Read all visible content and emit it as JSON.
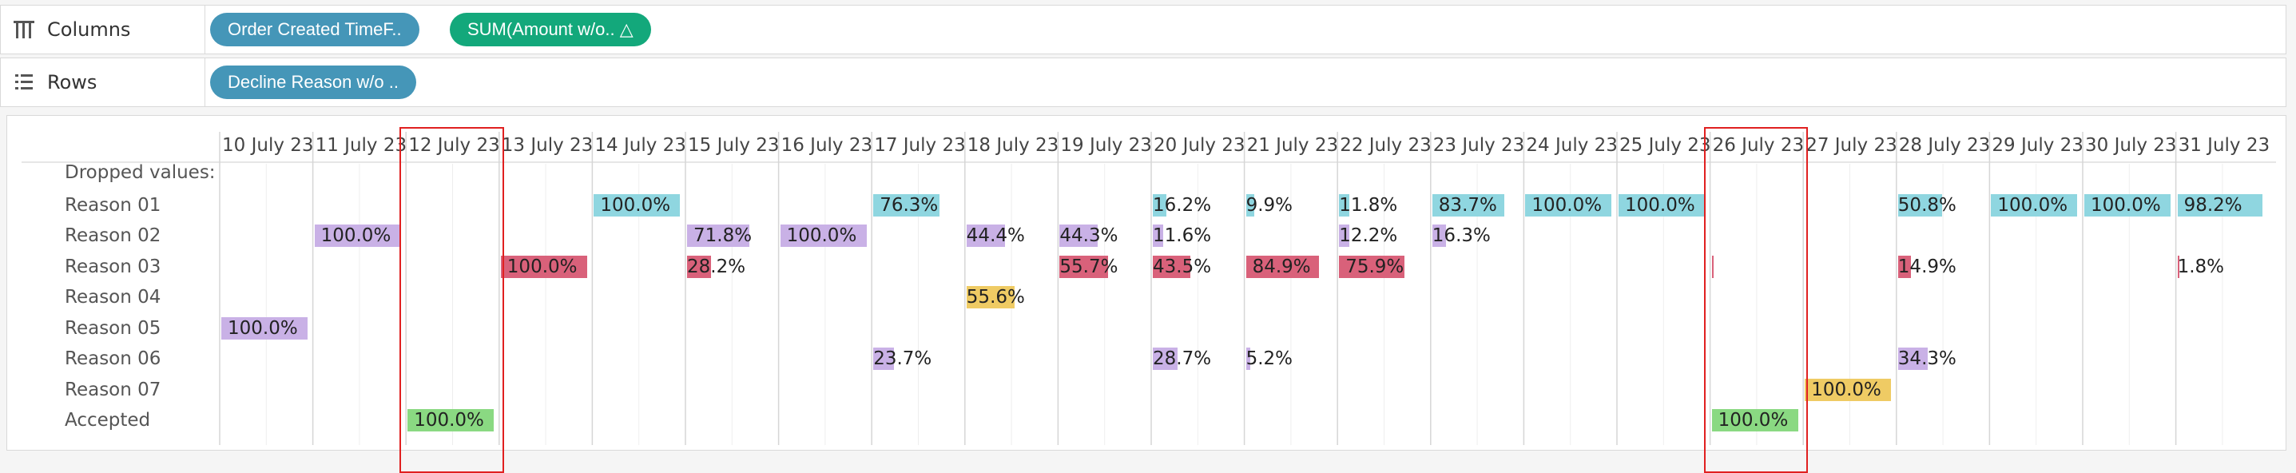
{
  "shelves": {
    "columns": {
      "label": "Columns",
      "icon": "columns-shelf-icon",
      "pills": [
        {
          "text": "Order Created TimeF..",
          "color": "#4596b8"
        },
        {
          "text": "SUM(Amount w/o..  △",
          "color": "#13a87b"
        }
      ]
    },
    "rows": {
      "label": "Rows",
      "icon": "rows-shelf-icon",
      "pills": [
        {
          "text": "Decline Reason w/o ..",
          "color": "#4596b8"
        }
      ]
    }
  },
  "table": {
    "columns": [
      "10 July 23",
      "11 July 23",
      "12 July 23",
      "13 July 23",
      "14 July 23",
      "15 July 23",
      "16 July 23",
      "17 July 23",
      "18 July 23",
      "19 July 23",
      "20 July 23",
      "21 July 23",
      "22 July 23",
      "23 July 23",
      "24 July 23",
      "25 July 23",
      "26 July 23",
      "27 July 23",
      "28 July 23",
      "29 July 23",
      "30 July 23",
      "31 July 23"
    ],
    "rows": [
      "Dropped values:",
      "Reason 01",
      "Reason 02",
      "Reason 03",
      "Reason 04",
      "Reason 05",
      "Reason 06",
      "Reason 07",
      "Accepted"
    ],
    "colors": {
      "Reason 01": "#8fd6e0",
      "Reason 02": "#c9b1e6",
      "Reason 03": "#d9617a",
      "Reason 04": "#efcb64",
      "Reason 05": "#c9b1e6",
      "Reason 06": "#c9b1e6",
      "Reason 07": "#efcb64",
      "Accepted": "#8ad982"
    },
    "cells": [
      {
        "row": 1,
        "col": 4,
        "label": "100.0%",
        "value": 100.0
      },
      {
        "row": 1,
        "col": 7,
        "label": "76.3%",
        "value": 76.3
      },
      {
        "row": 1,
        "col": 10,
        "label": "16.2%",
        "value": 16.2
      },
      {
        "row": 1,
        "col": 11,
        "label": "9.9%",
        "value": 9.9
      },
      {
        "row": 1,
        "col": 12,
        "label": "11.8%",
        "value": 11.8
      },
      {
        "row": 1,
        "col": 13,
        "label": "83.7%",
        "value": 83.7
      },
      {
        "row": 1,
        "col": 14,
        "label": "100.0%",
        "value": 100.0
      },
      {
        "row": 1,
        "col": 15,
        "label": "100.0%",
        "value": 100.0
      },
      {
        "row": 1,
        "col": 18,
        "label": "50.8%",
        "value": 50.8
      },
      {
        "row": 1,
        "col": 19,
        "label": "100.0%",
        "value": 100.0
      },
      {
        "row": 1,
        "col": 20,
        "label": "100.0%",
        "value": 100.0
      },
      {
        "row": 1,
        "col": 21,
        "label": "98.2%",
        "value": 98.2
      },
      {
        "row": 2,
        "col": 1,
        "label": "100.0%",
        "value": 100.0
      },
      {
        "row": 2,
        "col": 5,
        "label": "71.8%",
        "value": 71.8
      },
      {
        "row": 2,
        "col": 6,
        "label": "100.0%",
        "value": 100.0
      },
      {
        "row": 2,
        "col": 8,
        "label": "44.4%",
        "value": 44.4
      },
      {
        "row": 2,
        "col": 9,
        "label": "44.3%",
        "value": 44.3
      },
      {
        "row": 2,
        "col": 10,
        "label": "11.6%",
        "value": 11.6
      },
      {
        "row": 2,
        "col": 12,
        "label": "12.2%",
        "value": 12.2
      },
      {
        "row": 2,
        "col": 13,
        "label": "16.3%",
        "value": 16.3
      },
      {
        "row": 3,
        "col": 3,
        "label": "100.0%",
        "value": 100.0
      },
      {
        "row": 3,
        "col": 5,
        "label": "28.2%",
        "value": 28.2
      },
      {
        "row": 3,
        "col": 9,
        "label": "55.7%",
        "value": 55.7
      },
      {
        "row": 3,
        "col": 10,
        "label": "43.5%",
        "value": 43.5
      },
      {
        "row": 3,
        "col": 11,
        "label": "84.9%",
        "value": 84.9
      },
      {
        "row": 3,
        "col": 12,
        "label": "75.9%",
        "value": 75.9
      },
      {
        "row": 3,
        "col": 16,
        "label": "",
        "value": 0.4
      },
      {
        "row": 3,
        "col": 18,
        "label": "14.9%",
        "value": 14.9
      },
      {
        "row": 3,
        "col": 21,
        "label": "1.8%",
        "value": 1.8
      },
      {
        "row": 4,
        "col": 8,
        "label": "55.6%",
        "value": 55.6
      },
      {
        "row": 5,
        "col": 0,
        "label": "100.0%",
        "value": 100.0
      },
      {
        "row": 6,
        "col": 7,
        "label": "23.7%",
        "value": 23.7
      },
      {
        "row": 6,
        "col": 10,
        "label": "28.7%",
        "value": 28.7
      },
      {
        "row": 6,
        "col": 11,
        "label": "5.2%",
        "value": 5.2
      },
      {
        "row": 6,
        "col": 18,
        "label": "34.3%",
        "value": 34.3
      },
      {
        "row": 7,
        "col": 17,
        "label": "100.0%",
        "value": 100.0
      },
      {
        "row": 8,
        "col": 2,
        "label": "100.0%",
        "value": 100.0
      },
      {
        "row": 8,
        "col": 16,
        "label": "100.0%",
        "value": 100.0
      }
    ],
    "highlighted_columns": [
      2,
      16
    ],
    "highlight_color": "#e02020"
  }
}
